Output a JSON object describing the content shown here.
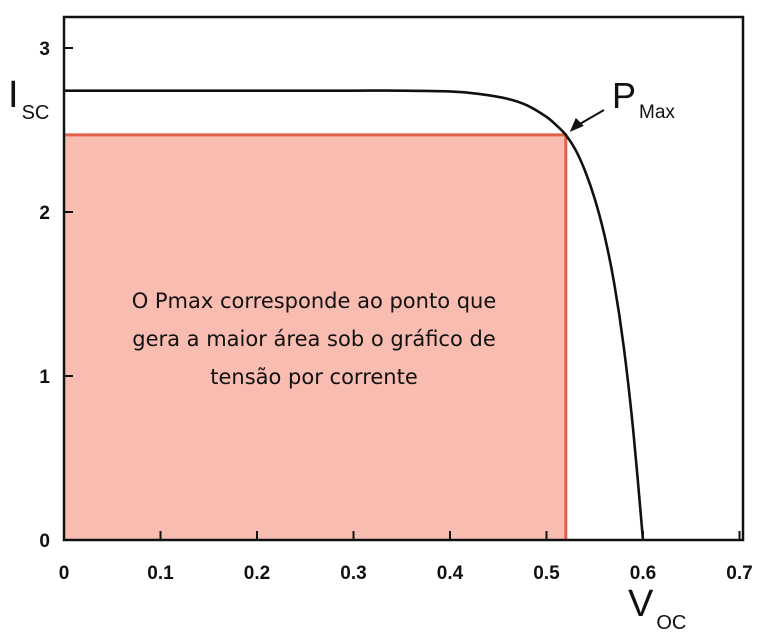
{
  "chart_data": {
    "type": "line",
    "title": "",
    "xlim": [
      0,
      0.7
    ],
    "ylim": [
      0,
      3.2
    ],
    "x_ticks": [
      "0",
      "0.1",
      "0.2",
      "0.3",
      "0.4",
      "0.5",
      "0.6",
      "0.7"
    ],
    "y_ticks": [
      "0",
      "1",
      "2",
      "3"
    ],
    "grid": false,
    "series": [
      {
        "color": "#111111",
        "points": [
          [
            0,
            2.74
          ],
          [
            0.05,
            2.74
          ],
          [
            0.1,
            2.74
          ],
          [
            0.15,
            2.74
          ],
          [
            0.2,
            2.74
          ],
          [
            0.25,
            2.74
          ],
          [
            0.3,
            2.74
          ],
          [
            0.35,
            2.74
          ],
          [
            0.4,
            2.735
          ],
          [
            0.43,
            2.72
          ],
          [
            0.46,
            2.69
          ],
          [
            0.48,
            2.65
          ],
          [
            0.5,
            2.58
          ],
          [
            0.51,
            2.53
          ],
          [
            0.52,
            2.47
          ],
          [
            0.53,
            2.38
          ],
          [
            0.54,
            2.25
          ],
          [
            0.55,
            2.08
          ],
          [
            0.56,
            1.86
          ],
          [
            0.57,
            1.57
          ],
          [
            0.58,
            1.18
          ],
          [
            0.59,
            0.66
          ],
          [
            0.6,
            0.0
          ]
        ]
      }
    ],
    "pmax_point": {
      "x": 0.52,
      "y": 2.47
    },
    "area_color": "#f9bcb0",
    "area_border_color": "#e0604a",
    "y_axis_symbol": {
      "main": "I",
      "sub": "SC"
    },
    "x_axis_symbol": {
      "main": "V",
      "sub": "OC"
    },
    "pmax_label": {
      "main": "P",
      "sub": "Max"
    },
    "annotation": [
      "O Pmax corresponde ao ponto que",
      "gera a maior área sob o gráfico de",
      "tensão por corrente"
    ]
  }
}
